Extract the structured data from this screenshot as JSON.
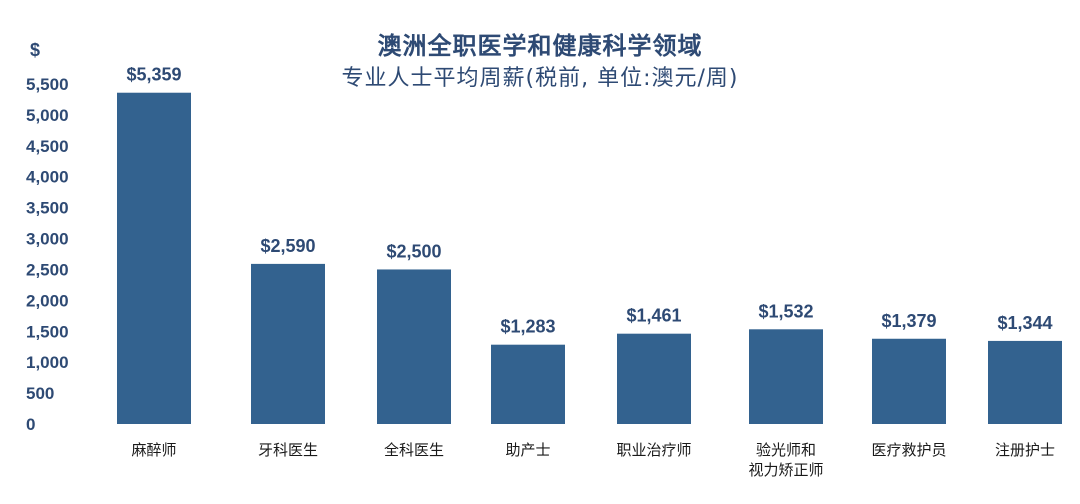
{
  "chart_data": {
    "type": "bar",
    "title": "澳洲全职医学和健康科学领域",
    "subtitle": "专业人士平均周薪(税前, 单位:澳元/周)",
    "ylabel": "$",
    "ylim": [
      0,
      5500
    ],
    "yticks": [
      "0",
      "500",
      "1,000",
      "1,500",
      "2,000",
      "2,500",
      "3,000",
      "3,500",
      "4,000",
      "4,500",
      "5,000",
      "5,500"
    ],
    "ytick_values": [
      0,
      500,
      1000,
      1500,
      2000,
      2500,
      3000,
      3500,
      4000,
      4500,
      5000,
      5500
    ],
    "categories": [
      "麻醉师",
      "牙科医生",
      "全科医生",
      "助产士",
      "职业治疗师",
      "验光师和\n视力矫正师",
      "医疗救护员",
      "注册护士"
    ],
    "values": [
      5359,
      2590,
      2500,
      1283,
      1461,
      1532,
      1379,
      1344
    ],
    "data_labels": [
      "$5,359",
      "$2,590",
      "$2,500",
      "$1,283",
      "$1,461",
      "$1,532",
      "$1,379",
      "$1,344"
    ],
    "bar_color": "#33628f",
    "text_color": "#2e4a74",
    "grid": false,
    "legend": "none"
  }
}
